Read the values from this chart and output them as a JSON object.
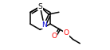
{
  "bg_color": "#ffffff",
  "bond_color": "#000000",
  "atom_colors": {
    "N": "#0000cd",
    "S": "#000000",
    "O": "#ff0000",
    "C": "#000000"
  },
  "bond_width": 1.1,
  "font_size_atom": 6.5
}
